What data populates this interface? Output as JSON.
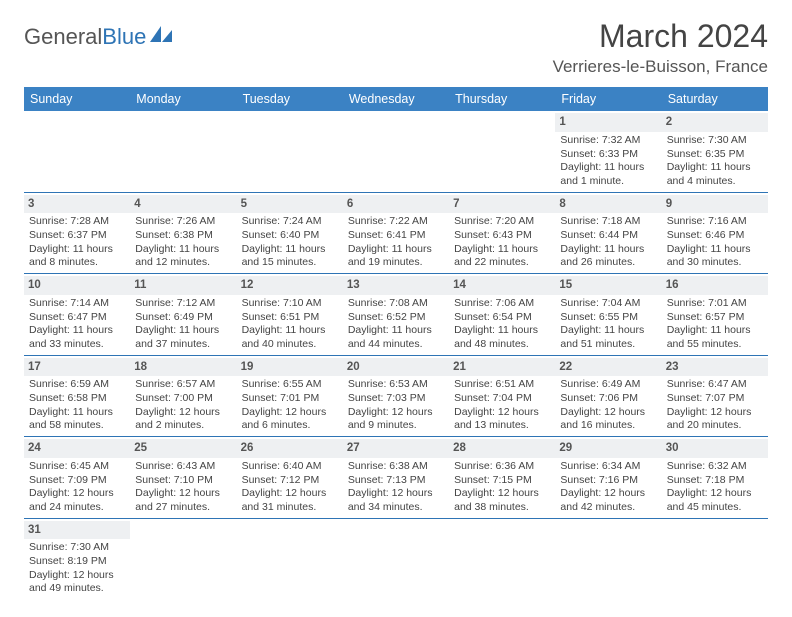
{
  "logo": {
    "text_a": "General",
    "text_b": "Blue"
  },
  "title": "March 2024",
  "location": "Verrieres-le-Buisson, France",
  "day_headers": [
    "Sunday",
    "Monday",
    "Tuesday",
    "Wednesday",
    "Thursday",
    "Friday",
    "Saturday"
  ],
  "colors": {
    "header_bg": "#3b82c4",
    "header_fg": "#ffffff",
    "daynum_bg": "#eef0f2",
    "border": "#2e74b5",
    "text": "#444444"
  },
  "weeks": [
    [
      {
        "n": "",
        "lines": []
      },
      {
        "n": "",
        "lines": []
      },
      {
        "n": "",
        "lines": []
      },
      {
        "n": "",
        "lines": []
      },
      {
        "n": "",
        "lines": []
      },
      {
        "n": "1",
        "lines": [
          "Sunrise: 7:32 AM",
          "Sunset: 6:33 PM",
          "Daylight: 11 hours",
          "and 1 minute."
        ]
      },
      {
        "n": "2",
        "lines": [
          "Sunrise: 7:30 AM",
          "Sunset: 6:35 PM",
          "Daylight: 11 hours",
          "and 4 minutes."
        ]
      }
    ],
    [
      {
        "n": "3",
        "lines": [
          "Sunrise: 7:28 AM",
          "Sunset: 6:37 PM",
          "Daylight: 11 hours",
          "and 8 minutes."
        ]
      },
      {
        "n": "4",
        "lines": [
          "Sunrise: 7:26 AM",
          "Sunset: 6:38 PM",
          "Daylight: 11 hours",
          "and 12 minutes."
        ]
      },
      {
        "n": "5",
        "lines": [
          "Sunrise: 7:24 AM",
          "Sunset: 6:40 PM",
          "Daylight: 11 hours",
          "and 15 minutes."
        ]
      },
      {
        "n": "6",
        "lines": [
          "Sunrise: 7:22 AM",
          "Sunset: 6:41 PM",
          "Daylight: 11 hours",
          "and 19 minutes."
        ]
      },
      {
        "n": "7",
        "lines": [
          "Sunrise: 7:20 AM",
          "Sunset: 6:43 PM",
          "Daylight: 11 hours",
          "and 22 minutes."
        ]
      },
      {
        "n": "8",
        "lines": [
          "Sunrise: 7:18 AM",
          "Sunset: 6:44 PM",
          "Daylight: 11 hours",
          "and 26 minutes."
        ]
      },
      {
        "n": "9",
        "lines": [
          "Sunrise: 7:16 AM",
          "Sunset: 6:46 PM",
          "Daylight: 11 hours",
          "and 30 minutes."
        ]
      }
    ],
    [
      {
        "n": "10",
        "lines": [
          "Sunrise: 7:14 AM",
          "Sunset: 6:47 PM",
          "Daylight: 11 hours",
          "and 33 minutes."
        ]
      },
      {
        "n": "11",
        "lines": [
          "Sunrise: 7:12 AM",
          "Sunset: 6:49 PM",
          "Daylight: 11 hours",
          "and 37 minutes."
        ]
      },
      {
        "n": "12",
        "lines": [
          "Sunrise: 7:10 AM",
          "Sunset: 6:51 PM",
          "Daylight: 11 hours",
          "and 40 minutes."
        ]
      },
      {
        "n": "13",
        "lines": [
          "Sunrise: 7:08 AM",
          "Sunset: 6:52 PM",
          "Daylight: 11 hours",
          "and 44 minutes."
        ]
      },
      {
        "n": "14",
        "lines": [
          "Sunrise: 7:06 AM",
          "Sunset: 6:54 PM",
          "Daylight: 11 hours",
          "and 48 minutes."
        ]
      },
      {
        "n": "15",
        "lines": [
          "Sunrise: 7:04 AM",
          "Sunset: 6:55 PM",
          "Daylight: 11 hours",
          "and 51 minutes."
        ]
      },
      {
        "n": "16",
        "lines": [
          "Sunrise: 7:01 AM",
          "Sunset: 6:57 PM",
          "Daylight: 11 hours",
          "and 55 minutes."
        ]
      }
    ],
    [
      {
        "n": "17",
        "lines": [
          "Sunrise: 6:59 AM",
          "Sunset: 6:58 PM",
          "Daylight: 11 hours",
          "and 58 minutes."
        ]
      },
      {
        "n": "18",
        "lines": [
          "Sunrise: 6:57 AM",
          "Sunset: 7:00 PM",
          "Daylight: 12 hours",
          "and 2 minutes."
        ]
      },
      {
        "n": "19",
        "lines": [
          "Sunrise: 6:55 AM",
          "Sunset: 7:01 PM",
          "Daylight: 12 hours",
          "and 6 minutes."
        ]
      },
      {
        "n": "20",
        "lines": [
          "Sunrise: 6:53 AM",
          "Sunset: 7:03 PM",
          "Daylight: 12 hours",
          "and 9 minutes."
        ]
      },
      {
        "n": "21",
        "lines": [
          "Sunrise: 6:51 AM",
          "Sunset: 7:04 PM",
          "Daylight: 12 hours",
          "and 13 minutes."
        ]
      },
      {
        "n": "22",
        "lines": [
          "Sunrise: 6:49 AM",
          "Sunset: 7:06 PM",
          "Daylight: 12 hours",
          "and 16 minutes."
        ]
      },
      {
        "n": "23",
        "lines": [
          "Sunrise: 6:47 AM",
          "Sunset: 7:07 PM",
          "Daylight: 12 hours",
          "and 20 minutes."
        ]
      }
    ],
    [
      {
        "n": "24",
        "lines": [
          "Sunrise: 6:45 AM",
          "Sunset: 7:09 PM",
          "Daylight: 12 hours",
          "and 24 minutes."
        ]
      },
      {
        "n": "25",
        "lines": [
          "Sunrise: 6:43 AM",
          "Sunset: 7:10 PM",
          "Daylight: 12 hours",
          "and 27 minutes."
        ]
      },
      {
        "n": "26",
        "lines": [
          "Sunrise: 6:40 AM",
          "Sunset: 7:12 PM",
          "Daylight: 12 hours",
          "and 31 minutes."
        ]
      },
      {
        "n": "27",
        "lines": [
          "Sunrise: 6:38 AM",
          "Sunset: 7:13 PM",
          "Daylight: 12 hours",
          "and 34 minutes."
        ]
      },
      {
        "n": "28",
        "lines": [
          "Sunrise: 6:36 AM",
          "Sunset: 7:15 PM",
          "Daylight: 12 hours",
          "and 38 minutes."
        ]
      },
      {
        "n": "29",
        "lines": [
          "Sunrise: 6:34 AM",
          "Sunset: 7:16 PM",
          "Daylight: 12 hours",
          "and 42 minutes."
        ]
      },
      {
        "n": "30",
        "lines": [
          "Sunrise: 6:32 AM",
          "Sunset: 7:18 PM",
          "Daylight: 12 hours",
          "and 45 minutes."
        ]
      }
    ],
    [
      {
        "n": "31",
        "lines": [
          "Sunrise: 7:30 AM",
          "Sunset: 8:19 PM",
          "Daylight: 12 hours",
          "and 49 minutes."
        ]
      },
      {
        "n": "",
        "lines": []
      },
      {
        "n": "",
        "lines": []
      },
      {
        "n": "",
        "lines": []
      },
      {
        "n": "",
        "lines": []
      },
      {
        "n": "",
        "lines": []
      },
      {
        "n": "",
        "lines": []
      }
    ]
  ]
}
